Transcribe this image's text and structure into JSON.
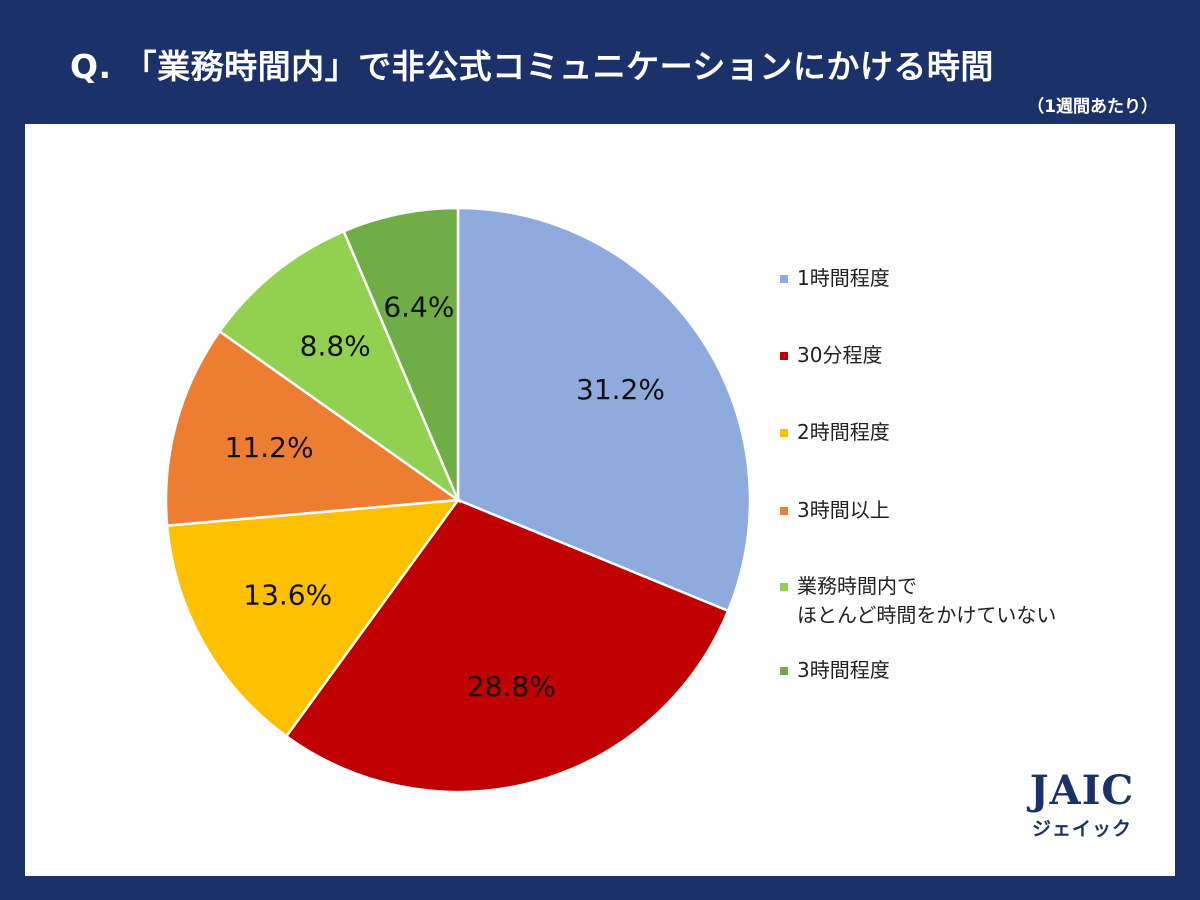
{
  "header": {
    "title": "Q. 「業務時間内」で非公式コミュニケーションにかける時間",
    "subtitle": "（1週間あたり）"
  },
  "logo": {
    "mark": "JAIC",
    "kana": "ジェイック"
  },
  "chart_data": {
    "type": "pie",
    "title": "Q. 「業務時間内」で非公式コミュニケーションにかける時間",
    "subtitle": "（1週間あたり）",
    "categories": [
      "1時間程度",
      "30分程度",
      "2時間程度",
      "3時間以上",
      "業務時間内で\nほとんど時間をかけていない",
      "3時間程度"
    ],
    "values": [
      31.2,
      28.8,
      13.6,
      11.2,
      8.8,
      6.4
    ],
    "labels": [
      "31.2%",
      "28.8%",
      "13.6%",
      "11.2%",
      "8.8%",
      "6.4%"
    ],
    "colors": [
      "#8faadc",
      "#c00000",
      "#ffc000",
      "#ed7d31",
      "#92d050",
      "#70ad47"
    ],
    "legend_position": "right",
    "start_angle": "12 o'clock",
    "direction": "clockwise"
  }
}
